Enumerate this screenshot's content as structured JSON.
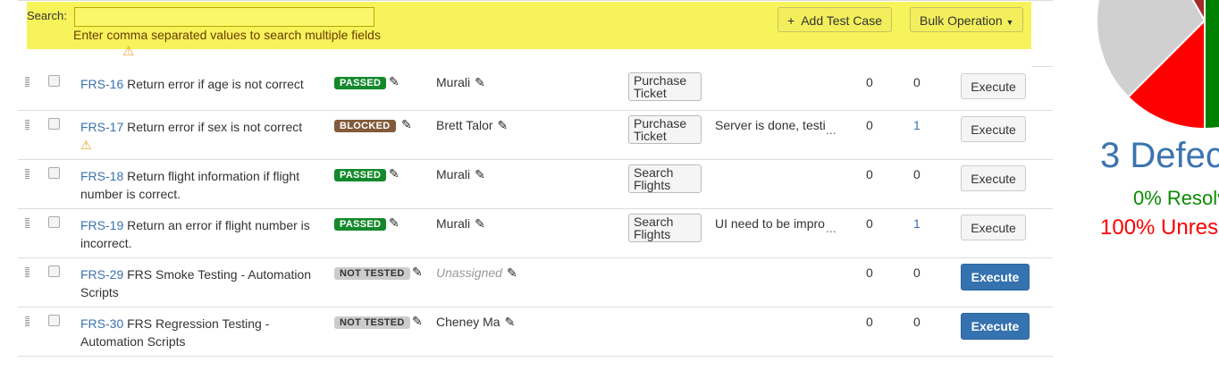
{
  "search": {
    "label": "Search:",
    "value": "",
    "hint": "Enter comma separated values to search multiple fields"
  },
  "toolbar": {
    "add_label": "Add Test Case",
    "bulk_label": "Bulk Operation"
  },
  "rows": [
    {
      "key": "FRS-16",
      "title": "Return error if age is not correct",
      "status": "PASSED",
      "status_color": "#14892c",
      "assignee": "Murali",
      "component": "Purchase Ticket",
      "comment": "",
      "c1": "0",
      "c2": "0",
      "execute": "Execute",
      "warning": false
    },
    {
      "key": "FRS-17",
      "title": "Return error if sex is not correct",
      "status": "BLOCKED",
      "status_color": "#815b3a",
      "assignee": "Brett Talor",
      "component": "Purchase Ticket",
      "comment": "Server is done, testi",
      "c1": "0",
      "c2": "1",
      "execute": "Execute",
      "warning": true
    },
    {
      "key": "FRS-18",
      "title": "Return flight information if flight number is correct.",
      "status": "PASSED",
      "status_color": "#14892c",
      "assignee": "Murali",
      "component": "Search Flights",
      "comment": "",
      "c1": "0",
      "c2": "0",
      "execute": "Execute",
      "warning": false
    },
    {
      "key": "FRS-19",
      "title": "Return an error if flight number is incorrect.",
      "status": "PASSED",
      "status_color": "#14892c",
      "assignee": "Murali",
      "component": "Search Flights",
      "comment": "UI need to be impro",
      "c1": "0",
      "c2": "1",
      "execute": "Execute",
      "warning": false
    },
    {
      "key": "FRS-29",
      "title": "FRS Smoke Testing - Automation Scripts",
      "status": "NOT TESTED",
      "status_color": "#ccc",
      "assignee": "Unassigned",
      "component": "",
      "comment": "",
      "c1": "0",
      "c2": "0",
      "execute": "Execute",
      "warning": false
    },
    {
      "key": "FRS-30",
      "title": "FRS Regression Testing - Automation Scripts",
      "status": "NOT TESTED",
      "status_color": "#ccc",
      "assignee": "Cheney Ma",
      "component": "",
      "comment": "",
      "c1": "0",
      "c2": "0",
      "execute": "Execute",
      "warning": false
    }
  ],
  "defects": {
    "title": "3 Defec",
    "resolved": "0% Resolv",
    "unresolved": "100% Unres",
    "colors": {
      "resolved": "#008000",
      "unresolved": "#ff0000",
      "other": "#d0d0d0",
      "blocked": "#a52a2a"
    }
  }
}
